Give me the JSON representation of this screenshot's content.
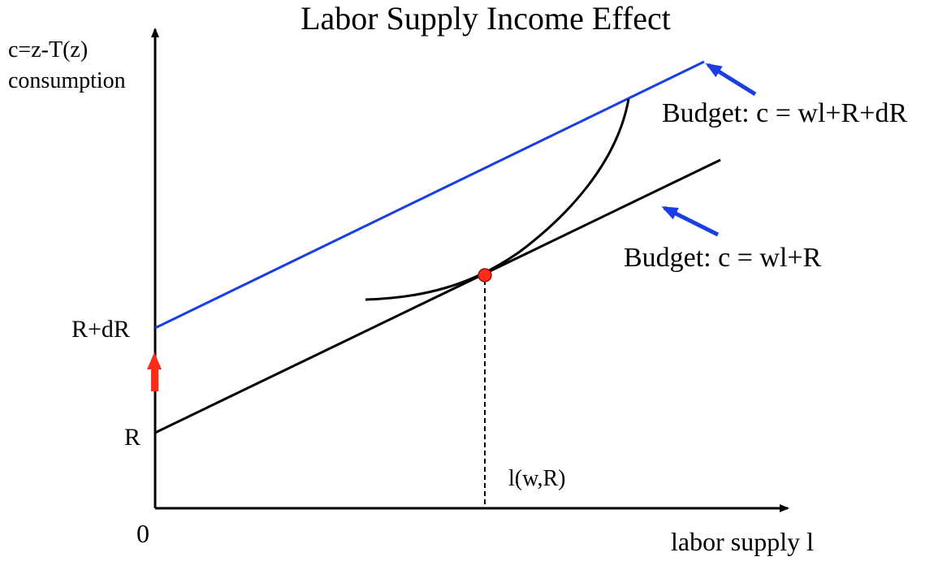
{
  "title": "Labor Supply Income Effect",
  "y_axis_label_line1": "c=z-T(z)",
  "y_axis_label_line2": "consumption",
  "x_axis_label": "labor supply l",
  "origin_label": "0",
  "r_label": "R",
  "r_plus_dr_label": "R+dR",
  "optimum_label": "l(w,R)",
  "budget_original_label": "Budget: c = wl+R",
  "budget_shifted_label": "Budget: c = wl+R+dR",
  "colors": {
    "axis": "#000000",
    "budget_original": "#000000",
    "budget_shifted": "#1a3ee6",
    "indifference_curve": "#000000",
    "optimum_point": "#ff2a1a",
    "shift_arrow": "#ff2a1a",
    "callout_arrows": "#1a3ee6"
  }
}
